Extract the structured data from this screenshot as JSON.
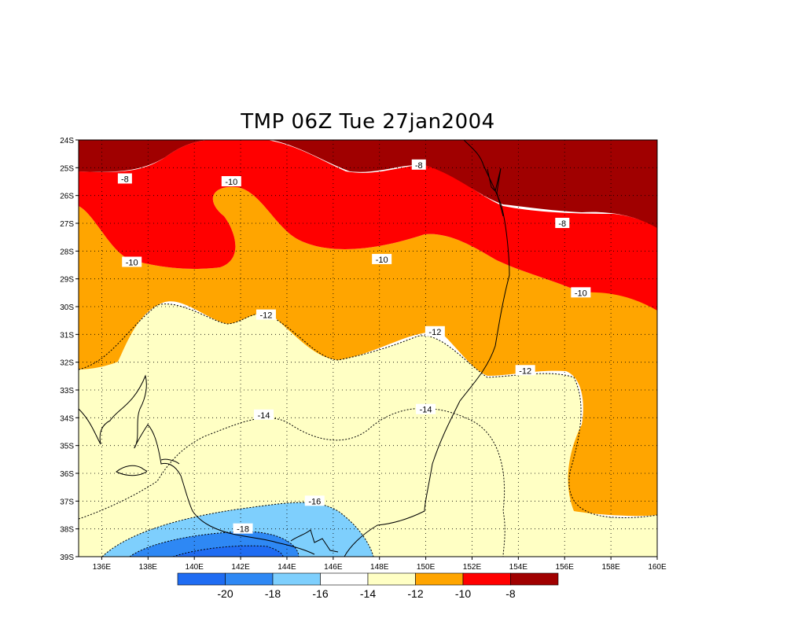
{
  "title": "TMP 06Z Tue 27jan2004",
  "chart_data": {
    "type": "contour-map",
    "variable": "TMP",
    "time": "06Z Tue 27jan2004",
    "lon_range": [
      135,
      160
    ],
    "lat_range": [
      -39,
      -24
    ],
    "y_ticks": [
      "24S",
      "25S",
      "26S",
      "27S",
      "28S",
      "29S",
      "30S",
      "31S",
      "32S",
      "33S",
      "34S",
      "35S",
      "36S",
      "37S",
      "38S",
      "39S"
    ],
    "x_ticks": [
      "136E",
      "138E",
      "140E",
      "142E",
      "144E",
      "146E",
      "148E",
      "150E",
      "152E",
      "154E",
      "156E",
      "158E",
      "160E"
    ],
    "grid": true,
    "contour_labels": [
      {
        "text": "-8",
        "lon": 137.0,
        "lat": -25.4
      },
      {
        "text": "-8",
        "lon": 149.7,
        "lat": -24.9
      },
      {
        "text": "-8",
        "lon": 155.9,
        "lat": -27.0
      },
      {
        "text": "-10",
        "lon": 141.6,
        "lat": -25.5
      },
      {
        "text": "-10",
        "lon": 137.3,
        "lat": -28.4
      },
      {
        "text": "-10",
        "lon": 148.1,
        "lat": -28.3
      },
      {
        "text": "-10",
        "lon": 156.7,
        "lat": -29.5
      },
      {
        "text": "-12",
        "lon": 143.1,
        "lat": -30.3
      },
      {
        "text": "-12",
        "lon": 150.4,
        "lat": -30.9
      },
      {
        "text": "-12",
        "lon": 154.3,
        "lat": -32.3
      },
      {
        "text": "-14",
        "lon": 143.0,
        "lat": -33.9
      },
      {
        "text": "-14",
        "lon": 150.0,
        "lat": -33.7
      },
      {
        "text": "-16",
        "lon": 145.2,
        "lat": -37.0
      },
      {
        "text": "-18",
        "lon": 142.1,
        "lat": -38.0
      }
    ],
    "colorbar": {
      "labels": [
        "-20",
        "-18",
        "-16",
        "-14",
        "-12",
        "-10",
        "-8"
      ],
      "colors": [
        "#1f6cf2",
        "#2e88f4",
        "#7ecffd",
        "#ffffff",
        "#ffffc4",
        "#ffa500",
        "#ff0000",
        "#a00000"
      ]
    }
  }
}
